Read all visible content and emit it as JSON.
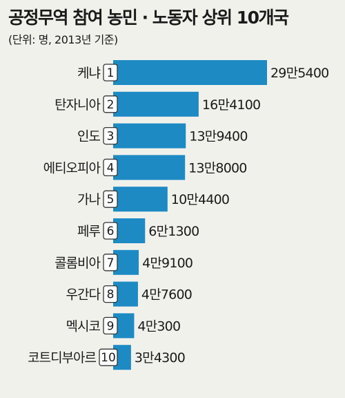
{
  "header": {
    "title": "공정무역 참여 농민 · 노동자 상위 10개국",
    "subtitle": "(단위: 명, 2013년 기준)"
  },
  "colors": {
    "bar": "#1d8ac4",
    "background": "#f1f1ec",
    "rank_box_border": "#333333"
  },
  "chart_data": {
    "type": "bar",
    "orientation": "horizontal",
    "title": "공정무역 참여 농민 · 노동자 상위 10개국",
    "subtitle": "(단위: 명, 2013년 기준)",
    "categories": [
      "케냐",
      "탄자니아",
      "인도",
      "에티오피아",
      "가나",
      "페루",
      "콜롬비아",
      "우간다",
      "멕시코",
      "코트디부아르"
    ],
    "ranks": [
      "1",
      "2",
      "3",
      "4",
      "5",
      "6",
      "7",
      "8",
      "9",
      "10"
    ],
    "values": [
      295400,
      164100,
      139400,
      138000,
      104400,
      61300,
      49100,
      47600,
      40300,
      34300
    ],
    "value_labels": [
      "29만5400",
      "16만4100",
      "13만9400",
      "13만8000",
      "10만4400",
      "6만1300",
      "4만9100",
      "4만7600",
      "4만300",
      "3만4300"
    ],
    "xlim": [
      0,
      295400
    ],
    "grid": false,
    "legend": "none"
  }
}
